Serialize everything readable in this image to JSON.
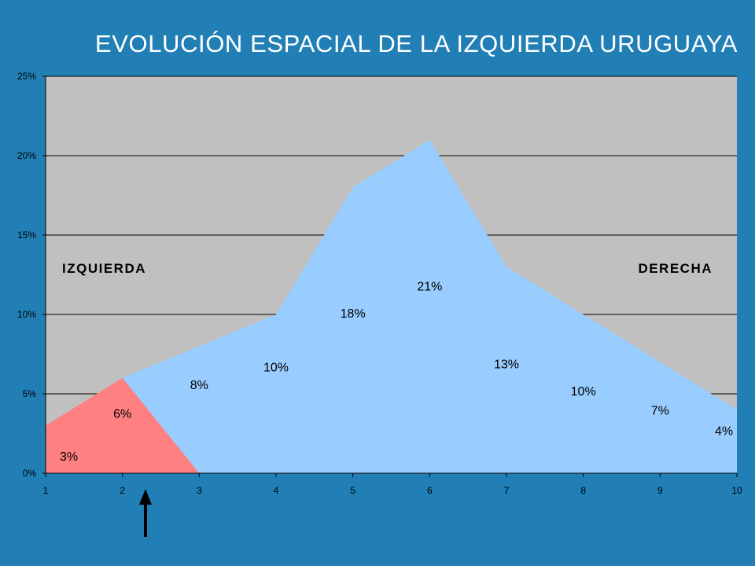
{
  "slide": {
    "title": "EVOLUCIÓN ESPACIAL DE LA IZQUIERDA URUGUAYA"
  },
  "chart_data": {
    "type": "area",
    "x": [
      1,
      2,
      3,
      4,
      5,
      6,
      7,
      8,
      9,
      10
    ],
    "xlim": [
      1,
      10
    ],
    "ylim": [
      0,
      0.25
    ],
    "y_ticks": [
      "0%",
      "5%",
      "10%",
      "15%",
      "20%",
      "25%"
    ],
    "x_ticks": [
      "1",
      "2",
      "3",
      "4",
      "5",
      "6",
      "7",
      "8",
      "9",
      "10"
    ],
    "grid": "horizontal",
    "series": [
      {
        "values": [
          0.03,
          0.06,
          0.08,
          0.1,
          0.18,
          0.21,
          0.13,
          0.1,
          0.07,
          0.04
        ],
        "labels": [
          "3%",
          "6%",
          "8%",
          "10%",
          "18%",
          "21%",
          "13%",
          "10%",
          "7%",
          "4%"
        ],
        "color": "#99ccff"
      },
      {
        "x": [
          1,
          2,
          3
        ],
        "values": [
          0.03,
          0.06,
          0.0
        ],
        "color": "#ff8080"
      }
    ],
    "annotations": {
      "left": "IZQUIERDA",
      "right": "DERECHA",
      "arrow_x": 2.3
    },
    "plot_background": "#c0c0c0"
  }
}
